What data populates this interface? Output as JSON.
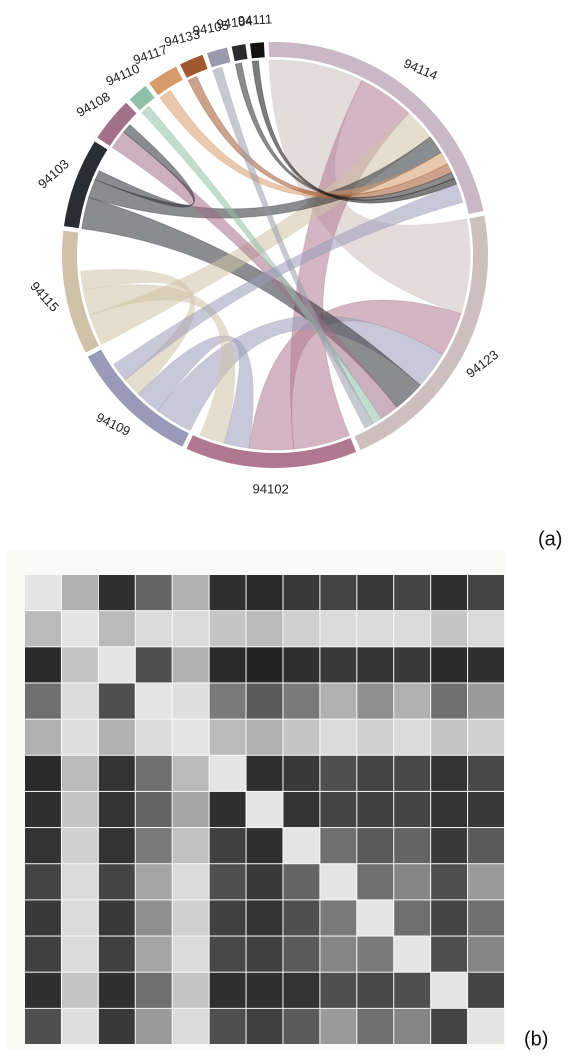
{
  "chart_data": [
    {
      "type": "chord",
      "groups": [
        "94114",
        "94123",
        "94102",
        "94109",
        "94115",
        "94103",
        "94108",
        "94110",
        "94117",
        "94133",
        "94105",
        "94104",
        "94111"
      ],
      "values": [
        85,
        82,
        50,
        38,
        36,
        26,
        13,
        6,
        9,
        7,
        6,
        4,
        4
      ],
      "colors": [
        "#c9b8c6",
        "#cdbfbf",
        "#b07890",
        "#9a9ab8",
        "#cfc2a8",
        "#2a2e33",
        "#a27088",
        "#8fc0aa",
        "#d79a6a",
        "#a0582e",
        "#9a9aaa",
        "#2b2b2b",
        "#111111"
      ],
      "chords": [
        {
          "source": "94123",
          "target": "94114",
          "value": 30
        },
        {
          "source": "94102",
          "target": "94114",
          "value": 18
        },
        {
          "source": "94102",
          "target": "94123",
          "value": 14
        },
        {
          "source": "94109",
          "target": "94123",
          "value": 12
        },
        {
          "source": "94103",
          "target": "94123",
          "value": 10
        },
        {
          "source": "94115",
          "target": "94114",
          "value": 10
        },
        {
          "source": "94103",
          "target": "94114",
          "value": 6
        },
        {
          "source": "94108",
          "target": "94123",
          "value": 6
        },
        {
          "source": "94109",
          "target": "94102",
          "value": 8
        },
        {
          "source": "94115",
          "target": "94102",
          "value": 8
        },
        {
          "source": "94115",
          "target": "94109",
          "value": 6
        },
        {
          "source": "94110",
          "target": "94123",
          "value": 3
        },
        {
          "source": "94117",
          "target": "94114",
          "value": 4
        },
        {
          "source": "94133",
          "target": "94114",
          "value": 3
        },
        {
          "source": "94105",
          "target": "94123",
          "value": 3
        },
        {
          "source": "94104",
          "target": "94114",
          "value": 2
        },
        {
          "source": "94111",
          "target": "94114",
          "value": 2
        },
        {
          "source": "94103",
          "target": "94108",
          "value": 3
        },
        {
          "source": "94109",
          "target": "94114",
          "value": 6
        }
      ],
      "panel_label": "(a)"
    },
    {
      "type": "heatmap",
      "values": [
        [
          0.05,
          0.3,
          0.9,
          0.65,
          0.3,
          0.9,
          0.92,
          0.85,
          0.8,
          0.85,
          0.8,
          0.9,
          0.8
        ],
        [
          0.25,
          0.05,
          0.25,
          0.1,
          0.1,
          0.2,
          0.25,
          0.15,
          0.1,
          0.1,
          0.1,
          0.2,
          0.1
        ],
        [
          0.92,
          0.2,
          0.05,
          0.75,
          0.3,
          0.92,
          0.95,
          0.9,
          0.85,
          0.88,
          0.85,
          0.92,
          0.9
        ],
        [
          0.6,
          0.1,
          0.75,
          0.05,
          0.08,
          0.55,
          0.7,
          0.55,
          0.3,
          0.45,
          0.3,
          0.6,
          0.4
        ],
        [
          0.3,
          0.08,
          0.3,
          0.1,
          0.05,
          0.25,
          0.3,
          0.2,
          0.1,
          0.15,
          0.1,
          0.2,
          0.15
        ],
        [
          0.92,
          0.25,
          0.88,
          0.6,
          0.25,
          0.05,
          0.9,
          0.85,
          0.75,
          0.8,
          0.78,
          0.88,
          0.78
        ],
        [
          0.9,
          0.2,
          0.88,
          0.65,
          0.35,
          0.9,
          0.05,
          0.88,
          0.8,
          0.82,
          0.8,
          0.88,
          0.85
        ],
        [
          0.88,
          0.15,
          0.88,
          0.55,
          0.22,
          0.82,
          0.9,
          0.05,
          0.6,
          0.7,
          0.65,
          0.85,
          0.7
        ],
        [
          0.8,
          0.1,
          0.8,
          0.35,
          0.1,
          0.75,
          0.85,
          0.65,
          0.05,
          0.6,
          0.5,
          0.75,
          0.4
        ],
        [
          0.85,
          0.1,
          0.85,
          0.45,
          0.15,
          0.82,
          0.88,
          0.75,
          0.55,
          0.05,
          0.6,
          0.8,
          0.6
        ],
        [
          0.82,
          0.1,
          0.82,
          0.35,
          0.1,
          0.78,
          0.82,
          0.7,
          0.5,
          0.55,
          0.05,
          0.75,
          0.5
        ],
        [
          0.9,
          0.2,
          0.9,
          0.6,
          0.2,
          0.9,
          0.9,
          0.88,
          0.75,
          0.78,
          0.75,
          0.05,
          0.8
        ],
        [
          0.75,
          0.08,
          0.85,
          0.4,
          0.1,
          0.75,
          0.82,
          0.7,
          0.4,
          0.6,
          0.5,
          0.8,
          0.05
        ]
      ],
      "panel_label": "(b)"
    }
  ]
}
